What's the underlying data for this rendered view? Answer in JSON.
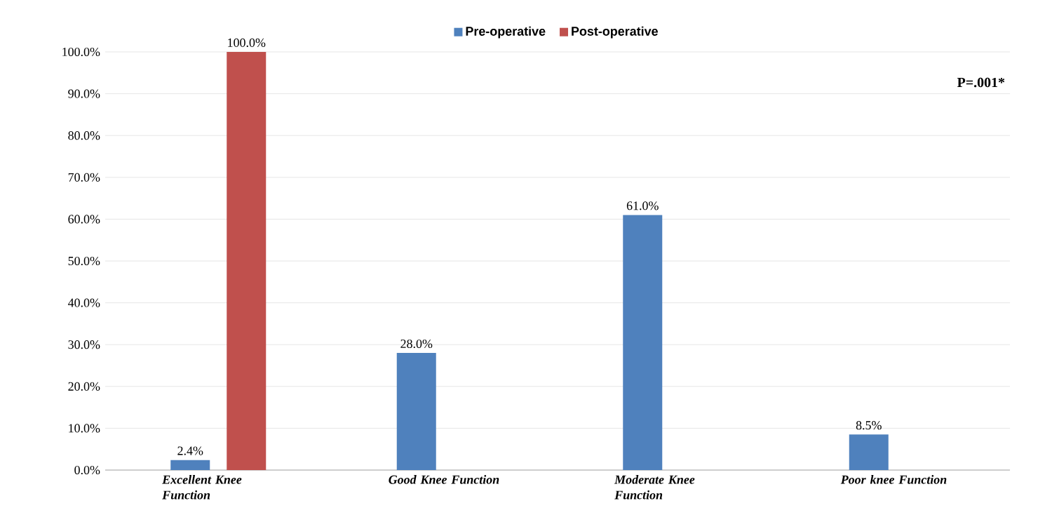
{
  "chart_data": {
    "type": "bar",
    "categories": [
      "Excellent Knee Function",
      "Good Knee Function",
      "Moderate Knee Function",
      "Poor knee Function"
    ],
    "series": [
      {
        "name": "Pre-operative",
        "color": "#4f81bd",
        "values": [
          2.4,
          28.0,
          61.0,
          8.5
        ],
        "value_labels": [
          "2.4%",
          "28.0%",
          "61.0%",
          "8.5%"
        ]
      },
      {
        "name": "Post-operative",
        "color": "#c0504d",
        "values": [
          100.0,
          null,
          null,
          null
        ],
        "value_labels": [
          "100.0%",
          null,
          null,
          null
        ]
      }
    ],
    "ylim": [
      0,
      100
    ],
    "yticks": [
      {
        "value": 0,
        "label": "0.0%"
      },
      {
        "value": 10,
        "label": "10.0%"
      },
      {
        "value": 20,
        "label": "20.0%"
      },
      {
        "value": 30,
        "label": "30.0%"
      },
      {
        "value": 40,
        "label": "40.0%"
      },
      {
        "value": 50,
        "label": "50.0%"
      },
      {
        "value": 60,
        "label": "60.0%"
      },
      {
        "value": 70,
        "label": "70.0%"
      },
      {
        "value": 80,
        "label": "80.0%"
      },
      {
        "value": 90,
        "label": "90.0%"
      },
      {
        "value": 100,
        "label": "100.0%"
      }
    ],
    "grid": "y",
    "legend": "top",
    "annotations": [
      "P=.001*"
    ]
  }
}
